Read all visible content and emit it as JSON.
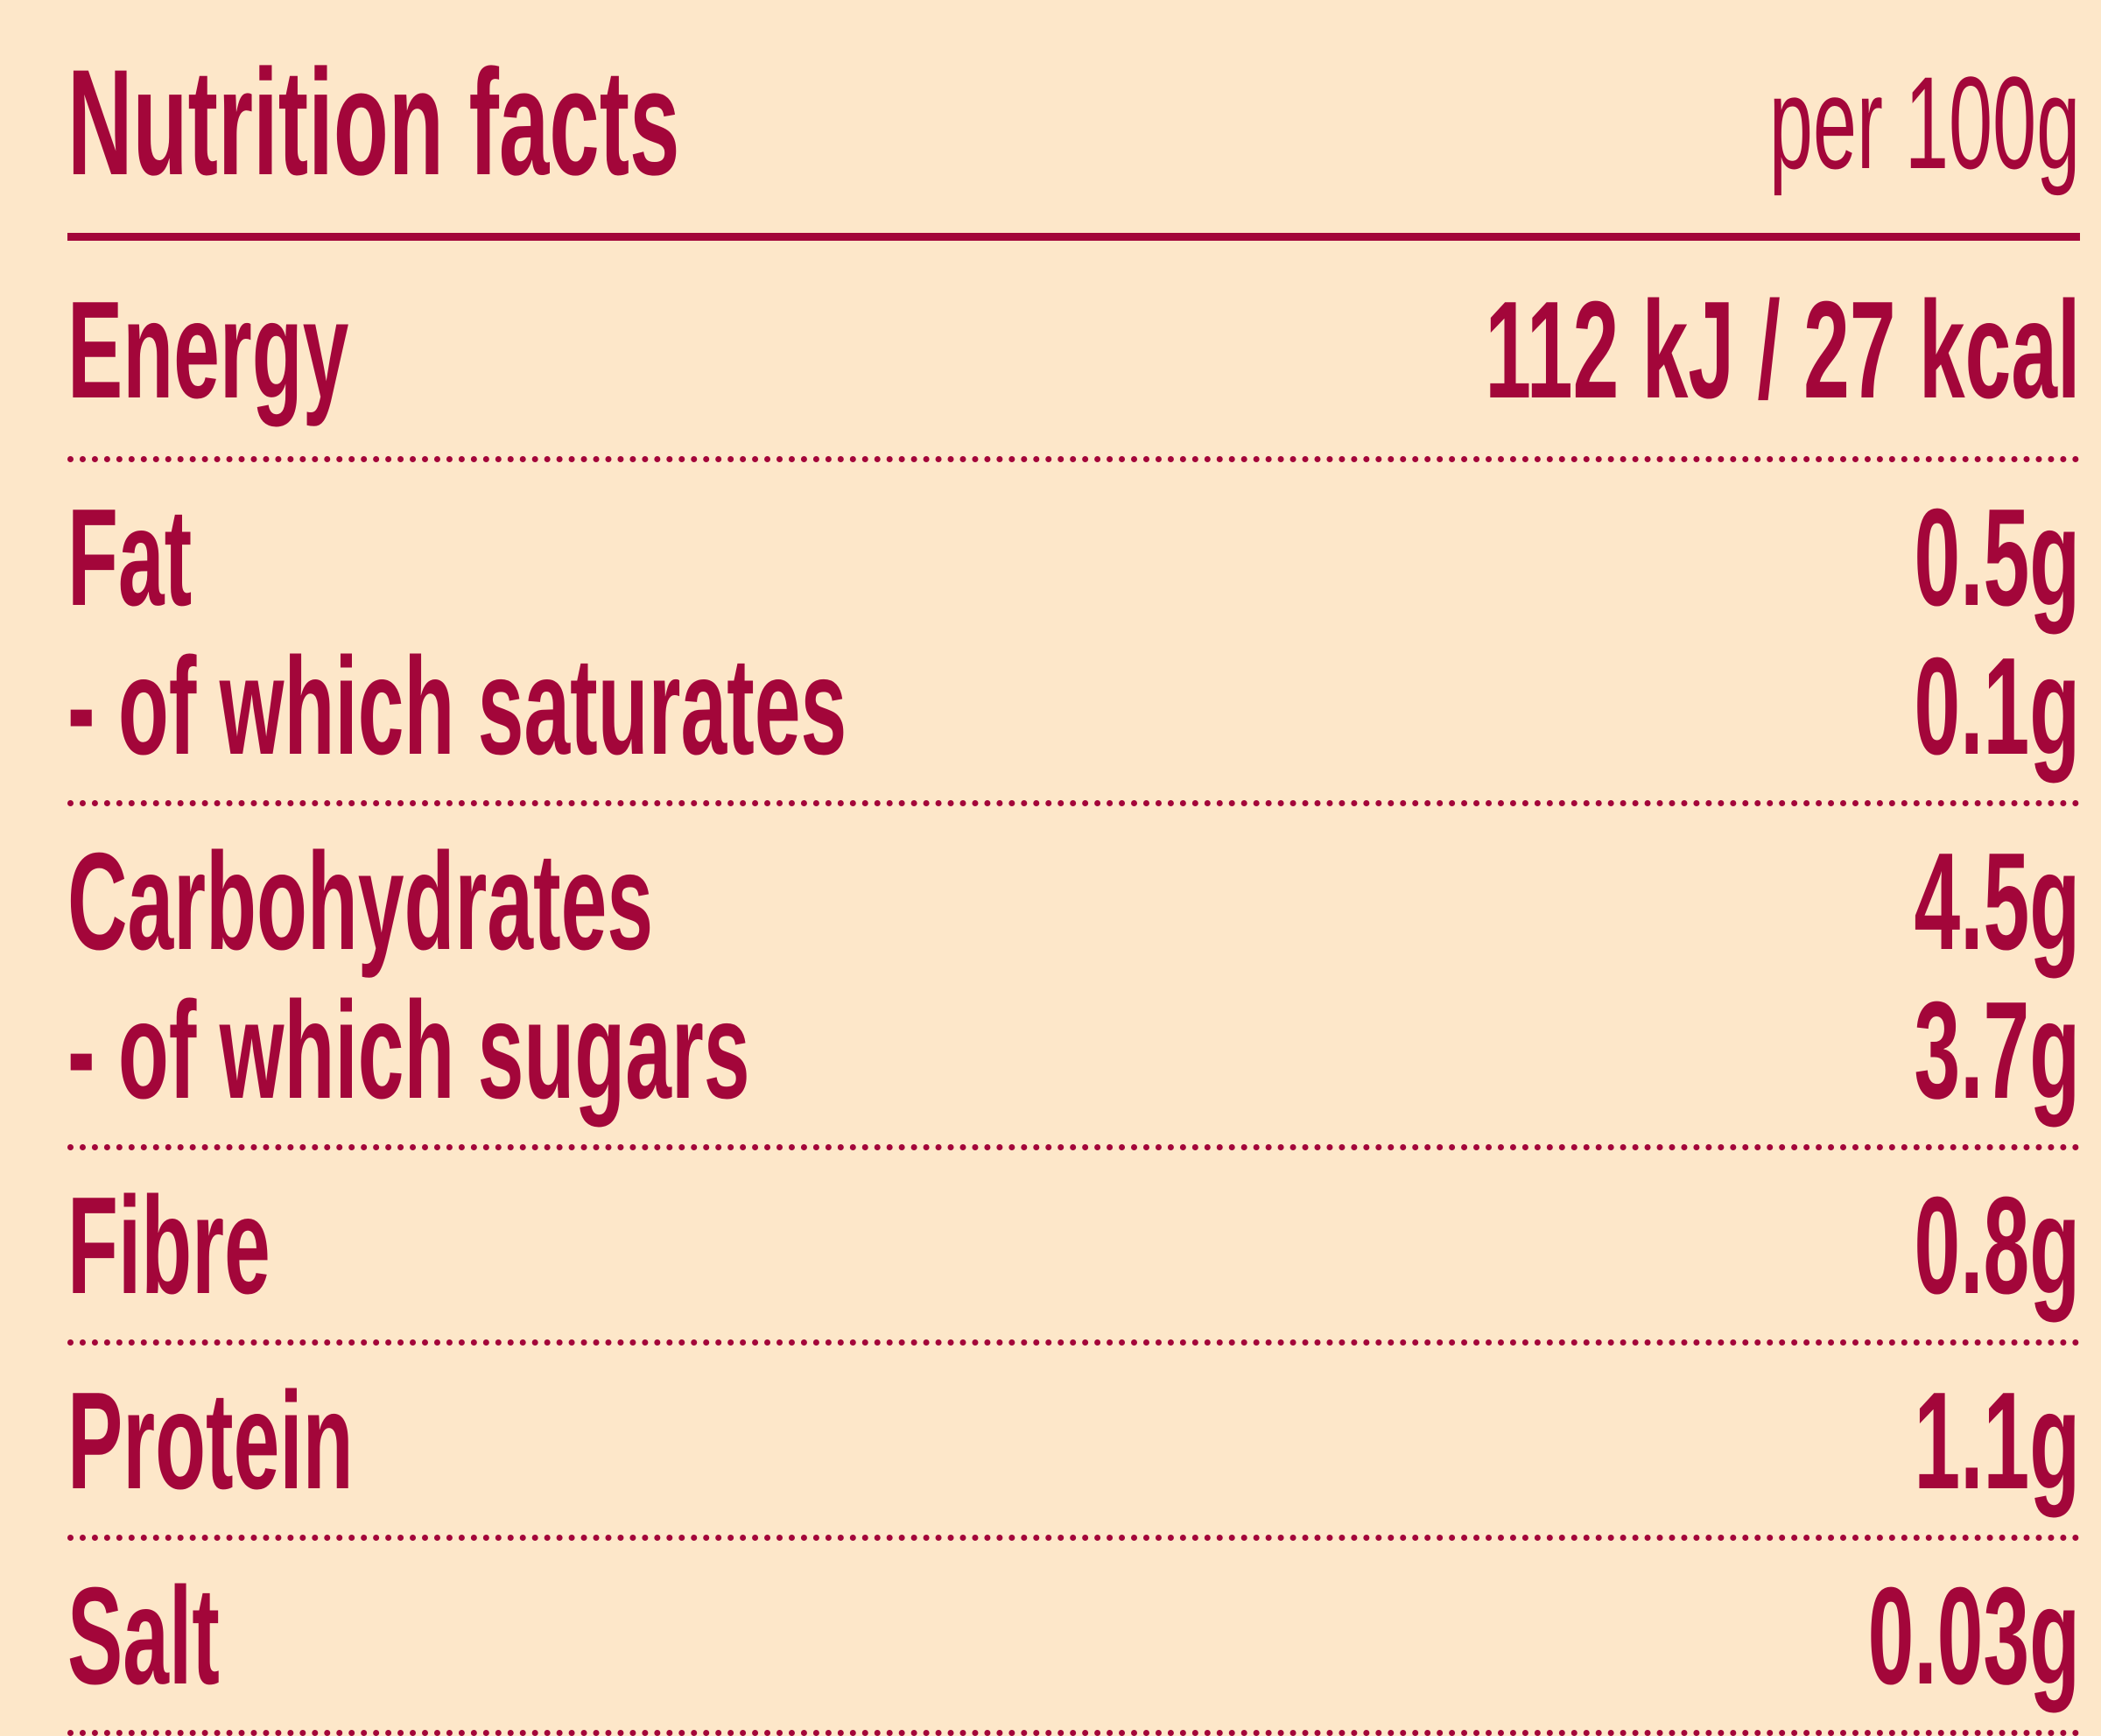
{
  "header": {
    "title": "Nutrition facts",
    "basis": "per 100g"
  },
  "groups": [
    [
      {
        "label": "Energy",
        "value": "112 kJ / 27 kcal"
      }
    ],
    [
      {
        "label": "Fat",
        "value": "0.5g"
      },
      {
        "label": "- of which saturates",
        "value": "0.1g"
      }
    ],
    [
      {
        "label": "Carbohydrates",
        "value": "4.5g"
      },
      {
        "label": "- of which sugars",
        "value": "3.7g"
      }
    ],
    [
      {
        "label": "Fibre",
        "value": "0.8g"
      }
    ],
    [
      {
        "label": "Protein",
        "value": "1.1g"
      }
    ],
    [
      {
        "label": "Salt",
        "value": "0.03g"
      }
    ]
  ]
}
